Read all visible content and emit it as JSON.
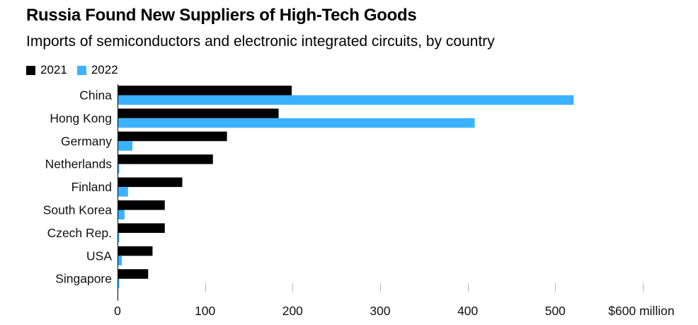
{
  "title": "Russia Found New Suppliers of High-Tech Goods",
  "subtitle": "Imports of semiconductors and electronic integrated circuits, by country",
  "colors": {
    "2021": "#000000",
    "2022": "#3bb2ff",
    "axis": "#000000",
    "tick": "#b3b3b3"
  },
  "chart_data": {
    "type": "bar",
    "orientation": "horizontal",
    "categories": [
      "China",
      "Hong Kong",
      "Germany",
      "Netherlands",
      "Finland",
      "South Korea",
      "Czech Rep.",
      "USA",
      "Singapore"
    ],
    "series": [
      {
        "name": "2021",
        "values": [
          199,
          184,
          125,
          109,
          74,
          54,
          54,
          40,
          35
        ]
      },
      {
        "name": "2022",
        "values": [
          521,
          408,
          17,
          2,
          12,
          8,
          2,
          5,
          2
        ]
      }
    ],
    "xlim": [
      0,
      600
    ],
    "xticks": [
      0,
      100,
      200,
      300,
      400,
      500,
      600
    ],
    "xtick_labels": [
      "0",
      "100",
      "200",
      "300",
      "400",
      "500",
      "$600 million"
    ],
    "grid": false,
    "legend_position": "top-left"
  }
}
